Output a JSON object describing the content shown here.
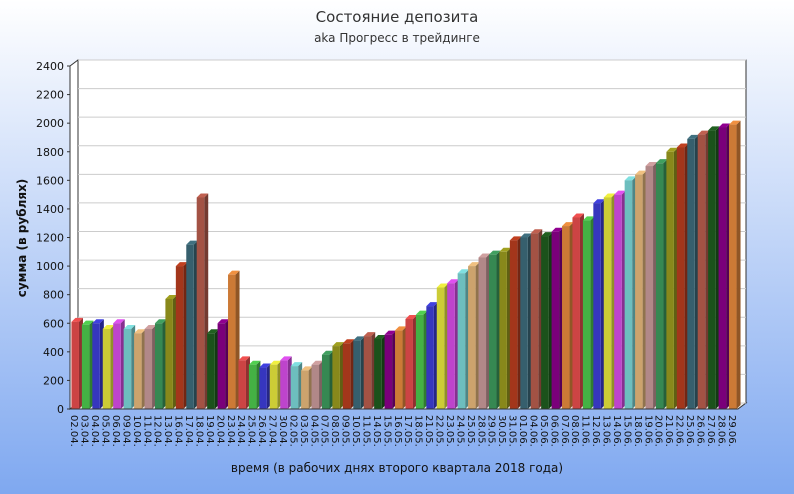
{
  "chart_data": {
    "type": "bar3d",
    "title": "Состояние депозита",
    "subtitle": "aka Прогресс в трейдинге",
    "x_label": "время (в рабочих днях второго квартала 2018 года)",
    "y_label": "сумма (в рублях)",
    "categories": [
      "02.04.",
      "03.04.",
      "04.04.",
      "05.04.",
      "06.04.",
      "09.04.",
      "10.04.",
      "11.04.",
      "12.04.",
      "13.04.",
      "16.04.",
      "17.04.",
      "18.04.",
      "19.04.",
      "20.04.",
      "23.04.",
      "24.04.",
      "25.04.",
      "26.04.",
      "27.04.",
      "30.04.",
      "02.05.",
      "03.05.",
      "04.05.",
      "07.05.",
      "08.05.",
      "09.05.",
      "10.05.",
      "11.05.",
      "14.05.",
      "15.05.",
      "16.05.",
      "17.05.",
      "18.05.",
      "21.05.",
      "22.05.",
      "23.05.",
      "24.05.",
      "25.05.",
      "28.05.",
      "29.05.",
      "30.05.",
      "31.05.",
      "01.06.",
      "04.06.",
      "05.06.",
      "06.06.",
      "07.06.",
      "08.06.",
      "11.06.",
      "12.06.",
      "13.06.",
      "14.06.",
      "15.06.",
      "18.06.",
      "19.06.",
      "20.06.",
      "21.06.",
      "22.06.",
      "25.06.",
      "26.06.",
      "27.06.",
      "28.06.",
      "29.06."
    ],
    "values": [
      610,
      590,
      600,
      560,
      600,
      560,
      530,
      560,
      600,
      770,
      1000,
      1150,
      1480,
      530,
      600,
      940,
      340,
      310,
      290,
      310,
      340,
      300,
      270,
      310,
      380,
      440,
      460,
      480,
      510,
      490,
      520,
      550,
      630,
      660,
      720,
      850,
      880,
      950,
      1000,
      1060,
      1080,
      1100,
      1180,
      1200,
      1230,
      1210,
      1240,
      1280,
      1340,
      1320,
      1440,
      1480,
      1500,
      1600,
      1640,
      1700,
      1720,
      1800,
      1830,
      1890,
      1920,
      1950,
      1970,
      1990
    ],
    "palette": [
      "#f05050",
      "#50d050",
      "#4040e0",
      "#f0f040",
      "#e050f0",
      "#80e0e0",
      "#f0c080",
      "#d0a0a0",
      "#40a060",
      "#a0a020",
      "#c04020",
      "#407080",
      "#c06050",
      "#206020",
      "#900090",
      "#f09040"
    ],
    "ylim": [
      0,
      2400
    ],
    "yticks": [
      0,
      200,
      400,
      600,
      800,
      1000,
      1200,
      1400,
      1600,
      1800,
      2000,
      2200,
      2400
    ],
    "grid": true
  }
}
